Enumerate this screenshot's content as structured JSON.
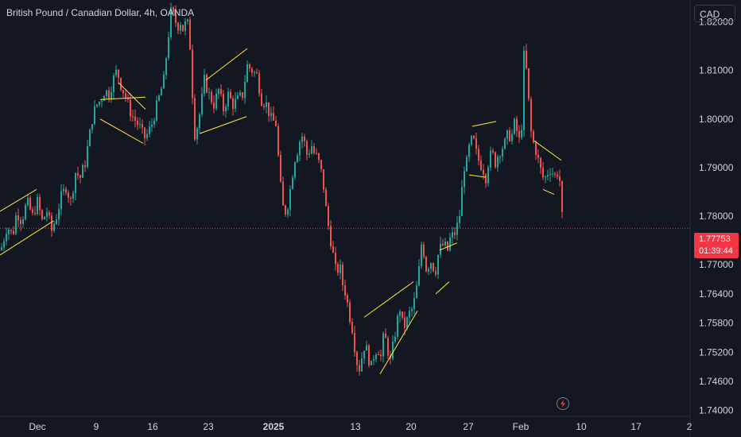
{
  "header": {
    "title": "British Pound / Canadian Dollar, 4h, OANDA"
  },
  "currency_button": {
    "label": "CAD"
  },
  "last_price": {
    "price": "1.77753",
    "countdown": "01:39:44"
  },
  "colors": {
    "background": "#131722",
    "up": "#26a69a",
    "down": "#ef5350",
    "pattern_lines": "#ffeb3b",
    "price_line": "#f23645",
    "axis_text": "#d1d4dc"
  },
  "icons": {
    "alert": "lightning-bolt-icon"
  },
  "chart_data": {
    "type": "candlestick",
    "title": "British Pound / Canadian Dollar, 4h, OANDA",
    "ylim": [
      1.7388,
      1.8245
    ],
    "y_ticks": [
      "1.82000",
      "1.81000",
      "1.80000",
      "1.79000",
      "1.78000",
      "1.77000",
      "1.76400",
      "1.75800",
      "1.75200",
      "1.74600",
      "1.74000"
    ],
    "x_ticks": [
      "Dec",
      "9",
      "16",
      "23",
      "2025",
      "13",
      "20",
      "27",
      "Feb",
      "10",
      "17",
      "2"
    ],
    "close_path": [
      [
        0,
        1.773
      ],
      [
        8,
        1.778
      ],
      [
        15,
        1.776
      ],
      [
        20,
        1.781
      ],
      [
        26,
        1.779
      ],
      [
        33,
        1.783
      ],
      [
        40,
        1.78
      ],
      [
        46,
        1.783
      ],
      [
        52,
        1.779
      ],
      [
        58,
        1.781
      ],
      [
        64,
        1.777
      ],
      [
        70,
        1.78
      ],
      [
        76,
        1.784
      ],
      [
        82,
        1.786
      ],
      [
        88,
        1.783
      ],
      [
        94,
        1.789
      ],
      [
        100,
        1.788
      ],
      [
        106,
        1.791
      ],
      [
        111,
        1.796
      ],
      [
        116,
        1.801
      ],
      [
        121,
        1.803
      ],
      [
        126,
        1.804
      ],
      [
        131,
        1.806
      ],
      [
        136,
        1.805
      ],
      [
        141,
        1.808
      ],
      [
        146,
        1.81
      ],
      [
        151,
        1.807
      ],
      [
        156,
        1.805
      ],
      [
        160,
        1.803
      ],
      [
        164,
        1.801
      ],
      [
        168,
        1.8
      ],
      [
        172,
        1.799
      ],
      [
        176,
        1.798
      ],
      [
        180,
        1.796
      ],
      [
        185,
        1.797
      ],
      [
        190,
        1.799
      ],
      [
        195,
        1.802
      ],
      [
        200,
        1.805
      ],
      [
        205,
        1.808
      ],
      [
        210,
        1.816
      ],
      [
        214,
        1.822
      ],
      [
        218,
        1.821
      ],
      [
        222,
        1.819
      ],
      [
        226,
        1.82
      ],
      [
        230,
        1.818
      ],
      [
        234,
        1.821
      ],
      [
        238,
        1.815
      ],
      [
        240,
        1.808
      ],
      [
        244,
        1.797
      ],
      [
        248,
        1.799
      ],
      [
        252,
        1.803
      ],
      [
        256,
        1.808
      ],
      [
        262,
        1.805
      ],
      [
        268,
        1.803
      ],
      [
        274,
        1.806
      ],
      [
        280,
        1.802
      ],
      [
        286,
        1.805
      ],
      [
        292,
        1.803
      ],
      [
        298,
        1.804
      ],
      [
        304,
        1.805
      ],
      [
        310,
        1.811
      ],
      [
        316,
        1.81
      ],
      [
        322,
        1.809
      ],
      [
        328,
        1.804
      ],
      [
        334,
        1.803
      ],
      [
        340,
        1.8
      ],
      [
        346,
        1.799
      ],
      [
        350,
        1.79
      ],
      [
        354,
        1.782
      ],
      [
        358,
        1.781
      ],
      [
        362,
        1.783
      ],
      [
        366,
        1.788
      ],
      [
        370,
        1.792
      ],
      [
        374,
        1.794
      ],
      [
        378,
        1.797
      ],
      [
        382,
        1.795
      ],
      [
        386,
        1.792
      ],
      [
        390,
        1.795
      ],
      [
        394,
        1.793
      ],
      [
        398,
        1.792
      ],
      [
        402,
        1.79
      ],
      [
        406,
        1.786
      ],
      [
        410,
        1.78
      ],
      [
        414,
        1.776
      ],
      [
        418,
        1.772
      ],
      [
        422,
        1.768
      ],
      [
        426,
        1.77
      ],
      [
        430,
        1.766
      ],
      [
        434,
        1.764
      ],
      [
        438,
        1.76
      ],
      [
        442,
        1.757
      ],
      [
        446,
        1.752
      ],
      [
        450,
        1.748
      ],
      [
        454,
        1.751
      ],
      [
        458,
        1.754
      ],
      [
        462,
        1.751
      ],
      [
        466,
        1.749
      ],
      [
        470,
        1.752
      ],
      [
        474,
        1.753
      ],
      [
        478,
        1.751
      ],
      [
        482,
        1.756
      ],
      [
        486,
        1.753
      ],
      [
        490,
        1.75
      ],
      [
        494,
        1.754
      ],
      [
        498,
        1.758
      ],
      [
        502,
        1.761
      ],
      [
        506,
        1.757
      ],
      [
        510,
        1.758
      ],
      [
        514,
        1.76
      ],
      [
        518,
        1.761
      ],
      [
        522,
        1.764
      ],
      [
        526,
        1.769
      ],
      [
        530,
        1.776
      ],
      [
        534,
        1.769
      ],
      [
        538,
        1.77
      ],
      [
        542,
        1.771
      ],
      [
        546,
        1.768
      ],
      [
        550,
        1.772
      ],
      [
        554,
        1.774
      ],
      [
        558,
        1.774
      ],
      [
        562,
        1.773
      ],
      [
        566,
        1.776
      ],
      [
        570,
        1.776
      ],
      [
        574,
        1.778
      ],
      [
        578,
        1.781
      ],
      [
        582,
        1.79
      ],
      [
        586,
        1.791
      ],
      [
        590,
        1.795
      ],
      [
        594,
        1.796
      ],
      [
        598,
        1.793
      ],
      [
        602,
        1.791
      ],
      [
        606,
        1.79
      ],
      [
        610,
        1.788
      ],
      [
        614,
        1.792
      ],
      [
        618,
        1.793
      ],
      [
        622,
        1.791
      ],
      [
        626,
        1.793
      ],
      [
        630,
        1.794
      ],
      [
        634,
        1.795
      ],
      [
        638,
        1.797
      ],
      [
        642,
        1.796
      ],
      [
        646,
        1.799
      ],
      [
        650,
        1.797
      ],
      [
        654,
        1.794
      ],
      [
        658,
        1.813
      ],
      [
        662,
        1.809
      ],
      [
        666,
        1.798
      ],
      [
        670,
        1.795
      ],
      [
        674,
        1.793
      ],
      [
        678,
        1.79
      ],
      [
        682,
        1.788
      ],
      [
        686,
        1.788
      ],
      [
        690,
        1.79
      ],
      [
        694,
        1.789
      ],
      [
        698,
        1.788
      ],
      [
        702,
        1.79
      ],
      [
        705,
        1.782
      ],
      [
        707,
        1.7775
      ]
    ],
    "pattern_lines": [
      [
        [
          0,
          1.781
        ],
        [
          46,
          1.7855
        ]
      ],
      [
        [
          0,
          1.772
        ],
        [
          67,
          1.779
        ]
      ],
      [
        [
          126,
          1.804
        ],
        [
          183,
          1.8045
        ]
      ],
      [
        [
          126,
          1.8
        ],
        [
          180,
          1.795
        ]
      ],
      [
        [
          149,
          1.8075
        ],
        [
          183,
          1.802
        ]
      ],
      [
        [
          259,
          1.808
        ],
        [
          311,
          1.8145
        ]
      ],
      [
        [
          251,
          1.797
        ],
        [
          310,
          1.8005
        ]
      ],
      [
        [
          458,
          1.7592
        ],
        [
          520,
          1.7665
        ]
      ],
      [
        [
          478,
          1.7475
        ],
        [
          525,
          1.7605
        ]
      ],
      [
        [
          548,
          1.764
        ],
        [
          565,
          1.7665
        ]
      ],
      [
        [
          553,
          1.773
        ],
        [
          575,
          1.7745
        ]
      ],
      [
        [
          594,
          1.7985
        ],
        [
          624,
          1.7995
        ]
      ],
      [
        [
          590,
          1.7885
        ],
        [
          611,
          1.788
        ]
      ],
      [
        [
          672,
          1.7955
        ],
        [
          706,
          1.7915
        ]
      ],
      [
        [
          683,
          1.7855
        ],
        [
          697,
          1.7845
        ]
      ]
    ],
    "last_price": 1.77753,
    "grid": false,
    "legend": "none"
  }
}
